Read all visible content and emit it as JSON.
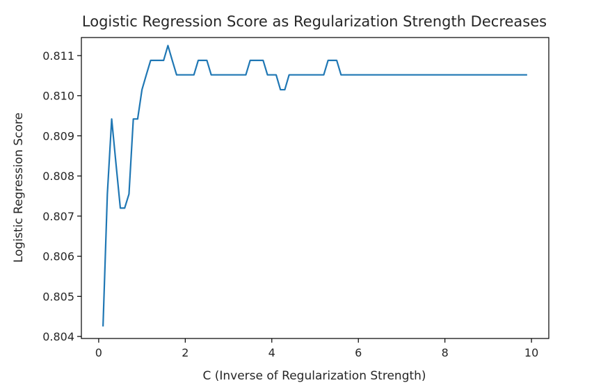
{
  "chart_data": {
    "type": "line",
    "title": "Logistic Regression Score as Regularization Strength Decreases",
    "xlabel": "C (Inverse of Regularization Strength)",
    "ylabel": "Logistic Regression Score",
    "xlim": [
      -0.4,
      10.4
    ],
    "ylim": [
      0.80395,
      0.81145
    ],
    "xticks": [
      0,
      2,
      4,
      6,
      8,
      10
    ],
    "xtick_labels": [
      "0",
      "2",
      "4",
      "6",
      "8",
      "10"
    ],
    "yticks": [
      0.804,
      0.805,
      0.806,
      0.807,
      0.808,
      0.809,
      0.81,
      0.811
    ],
    "ytick_labels": [
      "0.804",
      "0.805",
      "0.806",
      "0.807",
      "0.808",
      "0.809",
      "0.810",
      "0.811"
    ],
    "grid": false,
    "color": "#1f77b4",
    "series": [
      {
        "x": [
          0.1,
          0.2,
          0.3,
          0.4,
          0.5,
          0.6,
          0.7,
          0.8,
          0.9,
          1.0,
          1.1,
          1.2,
          1.3,
          1.4,
          1.5,
          1.6,
          1.7,
          1.8,
          1.9,
          2.0,
          2.1,
          2.2,
          2.3,
          2.4,
          2.5,
          2.6,
          2.7,
          2.8,
          2.9,
          3.0,
          3.1,
          3.2,
          3.3,
          3.4,
          3.5,
          3.6,
          3.7,
          3.8,
          3.9,
          4.0,
          4.1,
          4.2,
          4.3,
          4.4,
          4.5,
          4.6,
          4.7,
          4.8,
          4.9,
          5.0,
          5.1,
          5.2,
          5.3,
          5.4,
          5.5,
          5.6,
          5.7,
          5.8,
          5.9,
          6.0,
          6.5,
          7.0,
          7.5,
          8.0,
          8.5,
          9.0,
          9.5,
          9.9
        ],
        "y": [
          0.80425,
          0.80755,
          0.80942,
          0.8083,
          0.8072,
          0.8072,
          0.80755,
          0.80942,
          0.80942,
          0.81015,
          0.81052,
          0.81088,
          0.81088,
          0.81088,
          0.81088,
          0.81125,
          0.81088,
          0.81052,
          0.81052,
          0.81052,
          0.81052,
          0.81052,
          0.81088,
          0.81088,
          0.81088,
          0.81052,
          0.81052,
          0.81052,
          0.81052,
          0.81052,
          0.81052,
          0.81052,
          0.81052,
          0.81052,
          0.81088,
          0.81088,
          0.81088,
          0.81088,
          0.81052,
          0.81052,
          0.81052,
          0.81015,
          0.81015,
          0.81052,
          0.81052,
          0.81052,
          0.81052,
          0.81052,
          0.81052,
          0.81052,
          0.81052,
          0.81052,
          0.81088,
          0.81088,
          0.81088,
          0.81052,
          0.81052,
          0.81052,
          0.81052,
          0.81052,
          0.81052,
          0.81052,
          0.81052,
          0.81052,
          0.81052,
          0.81052,
          0.81052,
          0.81052
        ]
      }
    ]
  }
}
